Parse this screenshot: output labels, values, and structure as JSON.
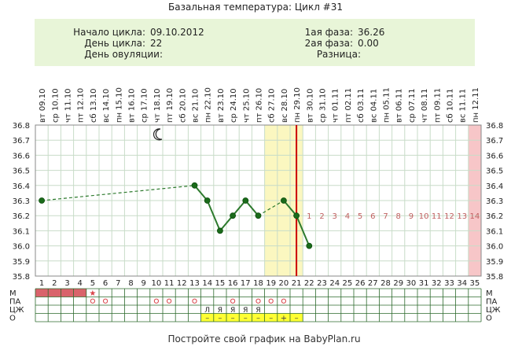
{
  "title": "Базальная температура: Цикл #31",
  "info": {
    "cycle_start_label": "Начало цикла:",
    "cycle_start_value": "09.10.2012",
    "cycle_day_label": "День цикла:",
    "cycle_day_value": "22",
    "ovulation_day_label": "День овуляции:",
    "ovulation_day_value": "",
    "phase1_label": "1ая фаза:",
    "phase1_value": "36.26",
    "phase2_label": "2ая фаза:",
    "phase2_value": "0.00",
    "difference_label": "Разница:",
    "difference_value": ""
  },
  "footer": "Постройте свой график на BabyPlan.ru",
  "row_labels": [
    "М",
    "ПА",
    "ЦЖ",
    "О"
  ],
  "colors": {
    "info_bg": "#e8f5d8",
    "line": "#2d7a2d",
    "marker": "#1a6b1a",
    "dashed": "#2d7a2d",
    "ovulation_zone": "#fbf7c0",
    "red_line": "#cc0000",
    "pink_zone": "#f7c6c8",
    "grid": "#c8dcc8",
    "menses": "#d9636b",
    "mucus_bg": "#ffff33",
    "luteal_numbers": "#c06060"
  },
  "chart_data": {
    "type": "line",
    "days": [
      1,
      2,
      3,
      4,
      5,
      6,
      7,
      8,
      9,
      10,
      11,
      12,
      13,
      14,
      15,
      16,
      17,
      18,
      19,
      20,
      21,
      22,
      23,
      24,
      25,
      26,
      27,
      28,
      29,
      30,
      31,
      32,
      33,
      34,
      35
    ],
    "dates": [
      "09.10",
      "10.10",
      "11.10",
      "12.10",
      "13.10",
      "14.10",
      "15.10",
      "16.10",
      "17.10",
      "18.10",
      "19.10",
      "20.10",
      "21.10",
      "22.10",
      "23.10",
      "24.10",
      "25.10",
      "26.10",
      "27.10",
      "28.10",
      "29.10",
      "30.10",
      "31.10",
      "01.11",
      "02.11",
      "03.11",
      "04.11",
      "05.11",
      "06.11",
      "07.11",
      "08.11",
      "09.11",
      "10.11",
      "11.11",
      "12.11"
    ],
    "weekdays": [
      "вт",
      "ср",
      "чт",
      "пт",
      "сб",
      "вс",
      "пн",
      "вт",
      "ср",
      "чт",
      "пт",
      "сб",
      "вс",
      "пн",
      "вт",
      "ср",
      "чт",
      "пт",
      "сб",
      "вс",
      "пн",
      "вт",
      "ср",
      "чт",
      "пт",
      "сб",
      "вс",
      "пн",
      "вт",
      "ср",
      "чт",
      "пт",
      "сб",
      "вс",
      "пн"
    ],
    "yticks": [
      "36.8",
      "36.7",
      "36.6",
      "36.5",
      "36.4",
      "36.3",
      "36.2",
      "36.1",
      "36.0",
      "35.9",
      "35.8"
    ],
    "ylim": [
      35.8,
      36.8
    ],
    "points": [
      {
        "day": 1,
        "temp": 36.3
      },
      {
        "day": 13,
        "temp": 36.4
      },
      {
        "day": 14,
        "temp": 36.3
      },
      {
        "day": 15,
        "temp": 36.1
      },
      {
        "day": 16,
        "temp": 36.2
      },
      {
        "day": 17,
        "temp": 36.3
      },
      {
        "day": 18,
        "temp": 36.2
      },
      {
        "day": 20,
        "temp": 36.3
      },
      {
        "day": 21,
        "temp": 36.2
      },
      {
        "day": 22,
        "temp": 36.0
      }
    ],
    "solid_segments": [
      [
        13,
        14
      ],
      [
        14,
        15
      ],
      [
        15,
        16
      ],
      [
        16,
        17
      ],
      [
        17,
        18
      ],
      [
        20,
        21
      ],
      [
        21,
        22
      ]
    ],
    "dashed_segments": [
      [
        1,
        13
      ],
      [
        18,
        20
      ]
    ],
    "ovulation_zone_days": [
      19,
      21
    ],
    "red_line_day": 21,
    "pink_zone_day": 35,
    "luteal_labels": [
      "1",
      "2",
      "3",
      "4",
      "5",
      "6",
      "7",
      "8",
      "9",
      "10",
      "11",
      "12",
      "13",
      "14"
    ],
    "luteal_start_day": 22,
    "luteal_temp": 36.2,
    "moon_day": 10,
    "menses_days": [
      1,
      2,
      3,
      4
    ],
    "star_day": 5,
    "pa_days": [
      5,
      6,
      10,
      11,
      13,
      16,
      18,
      19,
      20
    ],
    "cz_marks": [
      {
        "day": 14,
        "mark": "Л"
      },
      {
        "day": 15,
        "mark": "Я"
      },
      {
        "day": 16,
        "mark": "Я"
      },
      {
        "day": 17,
        "mark": "Я"
      },
      {
        "day": 18,
        "mark": "Я"
      }
    ],
    "o_marks": [
      {
        "day": 14,
        "mark": "–"
      },
      {
        "day": 15,
        "mark": "–"
      },
      {
        "day": 16,
        "mark": "–"
      },
      {
        "day": 17,
        "mark": "–"
      },
      {
        "day": 18,
        "mark": "–"
      },
      {
        "day": 19,
        "mark": "–"
      },
      {
        "day": 20,
        "mark": "+"
      },
      {
        "day": 21,
        "mark": "–"
      }
    ]
  }
}
